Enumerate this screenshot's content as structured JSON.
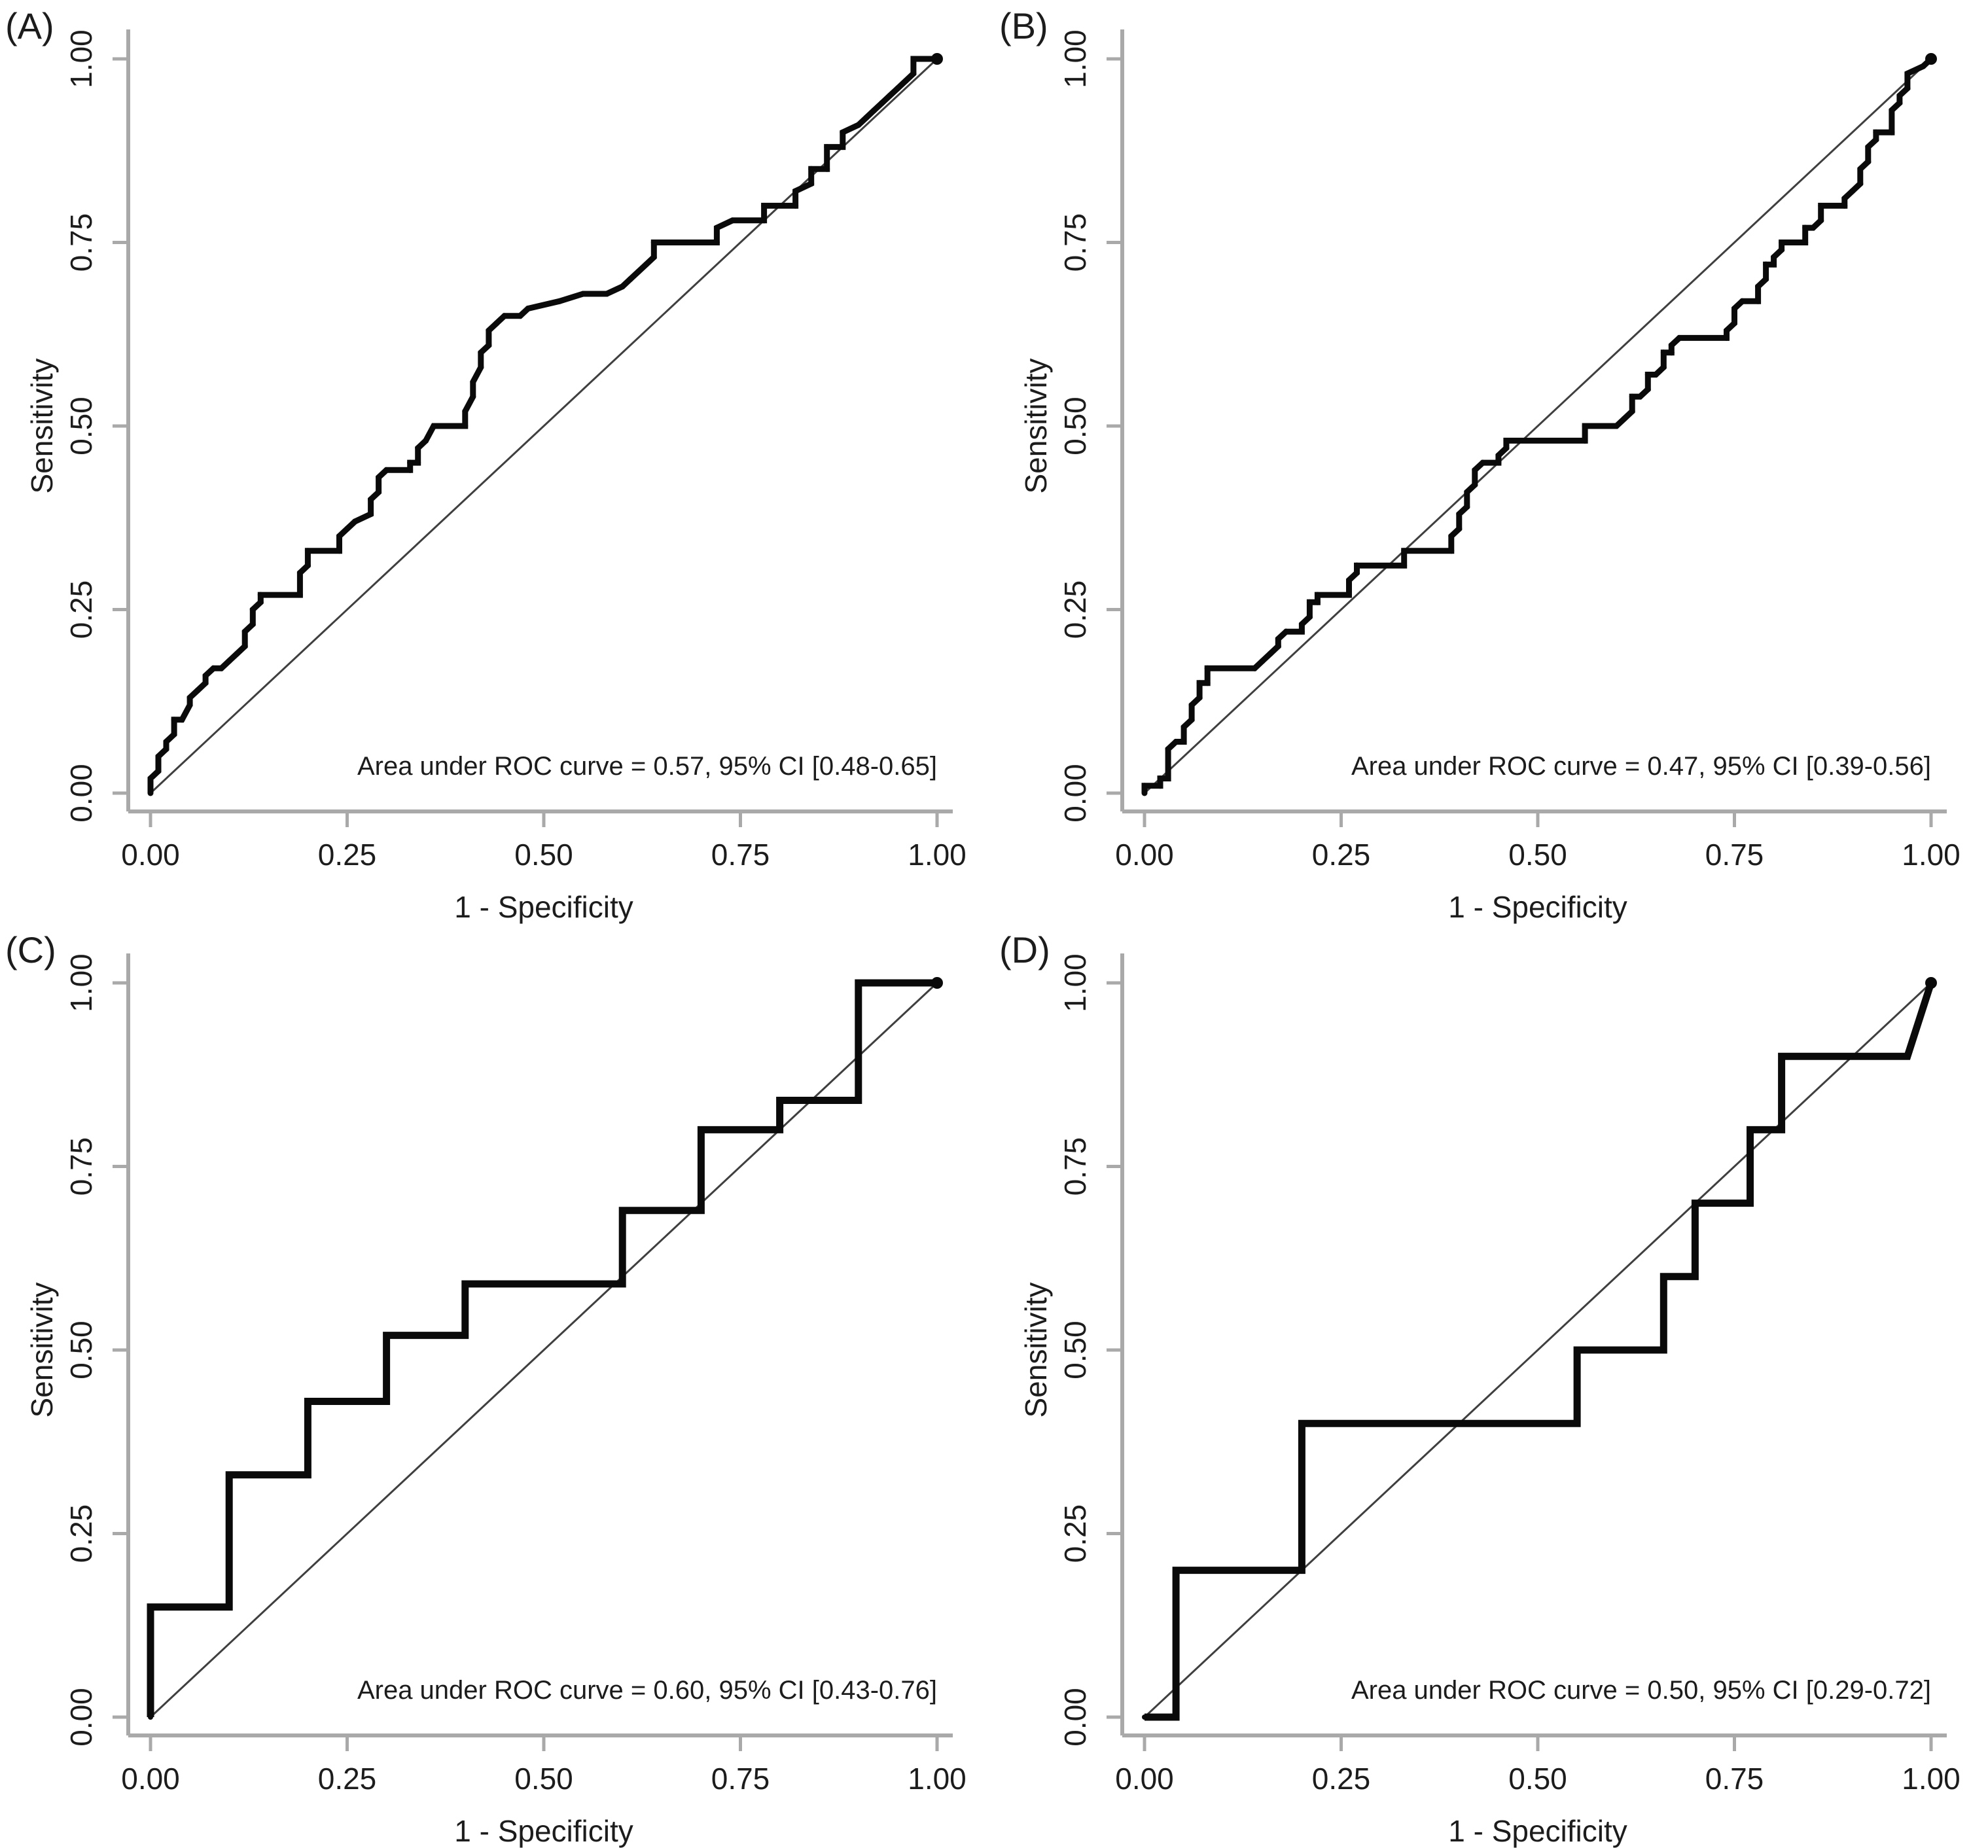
{
  "figure": {
    "panels": [
      {
        "label": "(A)"
      },
      {
        "label": "(B)"
      },
      {
        "label": "(C)"
      },
      {
        "label": "(D)"
      }
    ]
  },
  "style": {
    "axis_color": "#a9a9a9",
    "curve_color": "#0a0a0a",
    "diagonal_color": "#3f3f3f",
    "text_color": "#1c1c1c",
    "background": "#ffffff"
  },
  "chart_data": [
    {
      "type": "line",
      "panel": "(A)",
      "xlabel": "1 - Specificity",
      "ylabel": "Sensitivity",
      "xlim": [
        0,
        1
      ],
      "ylim": [
        0,
        1
      ],
      "ticks": [
        0,
        0.25,
        0.5,
        0.75,
        1
      ],
      "tick_labels": [
        "0.00",
        "0.25",
        "0.50",
        "0.75",
        "1.00"
      ],
      "annotation": "Area under ROC curve = 0.57, 95% CI [0.48-0.65]",
      "auc": 0.57,
      "ci_95": [
        0.48,
        0.65
      ],
      "reference_diagonal": true,
      "grid": false,
      "legend": "none",
      "line_width": 9,
      "marker_size": 4.5,
      "roc_points": [
        [
          0,
          0
        ],
        [
          0,
          0.02
        ],
        [
          0.01,
          0.03
        ],
        [
          0.01,
          0.05
        ],
        [
          0.02,
          0.06
        ],
        [
          0.02,
          0.07
        ],
        [
          0.03,
          0.08
        ],
        [
          0.03,
          0.1
        ],
        [
          0.04,
          0.1
        ],
        [
          0.05,
          0.12
        ],
        [
          0.05,
          0.13
        ],
        [
          0.06,
          0.14
        ],
        [
          0.07,
          0.15
        ],
        [
          0.07,
          0.16
        ],
        [
          0.08,
          0.17
        ],
        [
          0.09,
          0.17
        ],
        [
          0.1,
          0.18
        ],
        [
          0.11,
          0.19
        ],
        [
          0.12,
          0.2
        ],
        [
          0.12,
          0.22
        ],
        [
          0.13,
          0.23
        ],
        [
          0.13,
          0.25
        ],
        [
          0.14,
          0.26
        ],
        [
          0.14,
          0.27
        ],
        [
          0.19,
          0.27
        ],
        [
          0.19,
          0.3
        ],
        [
          0.2,
          0.31
        ],
        [
          0.2,
          0.33
        ],
        [
          0.24,
          0.33
        ],
        [
          0.24,
          0.35
        ],
        [
          0.25,
          0.36
        ],
        [
          0.26,
          0.37
        ],
        [
          0.28,
          0.38
        ],
        [
          0.28,
          0.4
        ],
        [
          0.29,
          0.41
        ],
        [
          0.29,
          0.43
        ],
        [
          0.3,
          0.44
        ],
        [
          0.33,
          0.44
        ],
        [
          0.33,
          0.45
        ],
        [
          0.34,
          0.45
        ],
        [
          0.34,
          0.47
        ],
        [
          0.35,
          0.48
        ],
        [
          0.36,
          0.5
        ],
        [
          0.4,
          0.5
        ],
        [
          0.4,
          0.52
        ],
        [
          0.41,
          0.54
        ],
        [
          0.41,
          0.56
        ],
        [
          0.42,
          0.58
        ],
        [
          0.42,
          0.6
        ],
        [
          0.43,
          0.61
        ],
        [
          0.43,
          0.63
        ],
        [
          0.44,
          0.64
        ],
        [
          0.45,
          0.65
        ],
        [
          0.47,
          0.65
        ],
        [
          0.48,
          0.66
        ],
        [
          0.52,
          0.67
        ],
        [
          0.55,
          0.68
        ],
        [
          0.58,
          0.68
        ],
        [
          0.6,
          0.69
        ],
        [
          0.61,
          0.7
        ],
        [
          0.62,
          0.71
        ],
        [
          0.63,
          0.72
        ],
        [
          0.64,
          0.73
        ],
        [
          0.64,
          0.75
        ],
        [
          0.72,
          0.75
        ],
        [
          0.72,
          0.77
        ],
        [
          0.74,
          0.78
        ],
        [
          0.78,
          0.78
        ],
        [
          0.78,
          0.8
        ],
        [
          0.82,
          0.8
        ],
        [
          0.82,
          0.82
        ],
        [
          0.84,
          0.83
        ],
        [
          0.84,
          0.85
        ],
        [
          0.86,
          0.85
        ],
        [
          0.86,
          0.88
        ],
        [
          0.88,
          0.88
        ],
        [
          0.88,
          0.9
        ],
        [
          0.9,
          0.91
        ],
        [
          0.91,
          0.92
        ],
        [
          0.92,
          0.93
        ],
        [
          0.93,
          0.94
        ],
        [
          0.94,
          0.95
        ],
        [
          0.95,
          0.96
        ],
        [
          0.96,
          0.97
        ],
        [
          0.97,
          0.98
        ],
        [
          0.97,
          1
        ],
        [
          1,
          1
        ]
      ]
    },
    {
      "type": "line",
      "panel": "(B)",
      "xlabel": "1 - Specificity",
      "ylabel": "Sensitivity",
      "xlim": [
        0,
        1
      ],
      "ylim": [
        0,
        1
      ],
      "ticks": [
        0,
        0.25,
        0.5,
        0.75,
        1
      ],
      "tick_labels": [
        "0.00",
        "0.25",
        "0.50",
        "0.75",
        "1.00"
      ],
      "annotation": "Area under ROC curve = 0.47, 95% CI [0.39-0.56]",
      "auc": 0.47,
      "ci_95": [
        0.39,
        0.56
      ],
      "reference_diagonal": true,
      "grid": false,
      "legend": "none",
      "line_width": 9,
      "marker_size": 4.5,
      "roc_points": [
        [
          0,
          0
        ],
        [
          0,
          0.01
        ],
        [
          0.02,
          0.01
        ],
        [
          0.02,
          0.02
        ],
        [
          0.03,
          0.02
        ],
        [
          0.03,
          0.06
        ],
        [
          0.04,
          0.07
        ],
        [
          0.05,
          0.07
        ],
        [
          0.05,
          0.09
        ],
        [
          0.06,
          0.1
        ],
        [
          0.06,
          0.12
        ],
        [
          0.07,
          0.13
        ],
        [
          0.07,
          0.15
        ],
        [
          0.08,
          0.15
        ],
        [
          0.08,
          0.17
        ],
        [
          0.14,
          0.17
        ],
        [
          0.15,
          0.18
        ],
        [
          0.16,
          0.19
        ],
        [
          0.17,
          0.2
        ],
        [
          0.17,
          0.21
        ],
        [
          0.18,
          0.22
        ],
        [
          0.2,
          0.22
        ],
        [
          0.2,
          0.23
        ],
        [
          0.21,
          0.24
        ],
        [
          0.21,
          0.26
        ],
        [
          0.22,
          0.26
        ],
        [
          0.22,
          0.27
        ],
        [
          0.26,
          0.27
        ],
        [
          0.26,
          0.29
        ],
        [
          0.27,
          0.3
        ],
        [
          0.27,
          0.31
        ],
        [
          0.33,
          0.31
        ],
        [
          0.33,
          0.33
        ],
        [
          0.39,
          0.33
        ],
        [
          0.39,
          0.35
        ],
        [
          0.4,
          0.36
        ],
        [
          0.4,
          0.38
        ],
        [
          0.41,
          0.39
        ],
        [
          0.41,
          0.41
        ],
        [
          0.42,
          0.42
        ],
        [
          0.42,
          0.44
        ],
        [
          0.43,
          0.45
        ],
        [
          0.45,
          0.45
        ],
        [
          0.45,
          0.46
        ],
        [
          0.46,
          0.47
        ],
        [
          0.46,
          0.48
        ],
        [
          0.56,
          0.48
        ],
        [
          0.56,
          0.5
        ],
        [
          0.6,
          0.5
        ],
        [
          0.61,
          0.51
        ],
        [
          0.62,
          0.52
        ],
        [
          0.62,
          0.54
        ],
        [
          0.63,
          0.54
        ],
        [
          0.64,
          0.55
        ],
        [
          0.64,
          0.57
        ],
        [
          0.65,
          0.57
        ],
        [
          0.66,
          0.58
        ],
        [
          0.66,
          0.6
        ],
        [
          0.67,
          0.6
        ],
        [
          0.67,
          0.61
        ],
        [
          0.68,
          0.62
        ],
        [
          0.74,
          0.62
        ],
        [
          0.74,
          0.63
        ],
        [
          0.75,
          0.64
        ],
        [
          0.75,
          0.66
        ],
        [
          0.76,
          0.67
        ],
        [
          0.78,
          0.67
        ],
        [
          0.78,
          0.69
        ],
        [
          0.79,
          0.7
        ],
        [
          0.79,
          0.72
        ],
        [
          0.8,
          0.72
        ],
        [
          0.8,
          0.73
        ],
        [
          0.81,
          0.74
        ],
        [
          0.81,
          0.75
        ],
        [
          0.84,
          0.75
        ],
        [
          0.84,
          0.77
        ],
        [
          0.85,
          0.77
        ],
        [
          0.86,
          0.78
        ],
        [
          0.86,
          0.8
        ],
        [
          0.89,
          0.8
        ],
        [
          0.89,
          0.81
        ],
        [
          0.9,
          0.82
        ],
        [
          0.91,
          0.83
        ],
        [
          0.91,
          0.85
        ],
        [
          0.92,
          0.86
        ],
        [
          0.92,
          0.88
        ],
        [
          0.93,
          0.89
        ],
        [
          0.93,
          0.9
        ],
        [
          0.95,
          0.9
        ],
        [
          0.95,
          0.93
        ],
        [
          0.96,
          0.94
        ],
        [
          0.96,
          0.95
        ],
        [
          0.97,
          0.96
        ],
        [
          0.97,
          0.98
        ],
        [
          0.99,
          0.99
        ],
        [
          1,
          1
        ]
      ]
    },
    {
      "type": "line",
      "panel": "(C)",
      "xlabel": "1 - Specificity",
      "ylabel": "Sensitivity",
      "xlim": [
        0,
        1
      ],
      "ylim": [
        0,
        1
      ],
      "ticks": [
        0,
        0.25,
        0.5,
        0.75,
        1
      ],
      "tick_labels": [
        "0.00",
        "0.25",
        "0.50",
        "0.75",
        "1.00"
      ],
      "annotation": "Area under ROC curve = 0.60, 95% CI [0.43-0.76]",
      "auc": 0.6,
      "ci_95": [
        0.43,
        0.76
      ],
      "reference_diagonal": true,
      "grid": false,
      "legend": "none",
      "line_width": 11,
      "marker_size": 4,
      "roc_points": [
        [
          0,
          0
        ],
        [
          0,
          0.15
        ],
        [
          0.1,
          0.15
        ],
        [
          0.1,
          0.33
        ],
        [
          0.2,
          0.33
        ],
        [
          0.2,
          0.43
        ],
        [
          0.3,
          0.43
        ],
        [
          0.3,
          0.52
        ],
        [
          0.4,
          0.52
        ],
        [
          0.4,
          0.59
        ],
        [
          0.6,
          0.59
        ],
        [
          0.6,
          0.69
        ],
        [
          0.7,
          0.69
        ],
        [
          0.7,
          0.8
        ],
        [
          0.8,
          0.8
        ],
        [
          0.8,
          0.84
        ],
        [
          0.9,
          0.84
        ],
        [
          0.9,
          1
        ],
        [
          1,
          1
        ]
      ]
    },
    {
      "type": "line",
      "panel": "(D)",
      "xlabel": "1 - Specificity",
      "ylabel": "Sensitivity",
      "xlim": [
        0,
        1
      ],
      "ylim": [
        0,
        1
      ],
      "ticks": [
        0,
        0.25,
        0.5,
        0.75,
        1
      ],
      "tick_labels": [
        "0.00",
        "0.25",
        "0.50",
        "0.75",
        "1.00"
      ],
      "annotation": "Area under ROC curve = 0.50, 95% CI [0.29-0.72]",
      "auc": 0.5,
      "ci_95": [
        0.29,
        0.72
      ],
      "reference_diagonal": true,
      "grid": false,
      "legend": "none",
      "line_width": 11,
      "marker_size": 4,
      "roc_points": [
        [
          0,
          0
        ],
        [
          0.04,
          0
        ],
        [
          0.04,
          0.2
        ],
        [
          0.2,
          0.2
        ],
        [
          0.2,
          0.4
        ],
        [
          0.55,
          0.4
        ],
        [
          0.55,
          0.5
        ],
        [
          0.66,
          0.5
        ],
        [
          0.66,
          0.6
        ],
        [
          0.7,
          0.6
        ],
        [
          0.7,
          0.7
        ],
        [
          0.77,
          0.7
        ],
        [
          0.77,
          0.8
        ],
        [
          0.81,
          0.8
        ],
        [
          0.81,
          0.9
        ],
        [
          0.97,
          0.9
        ],
        [
          1,
          1
        ]
      ]
    }
  ]
}
